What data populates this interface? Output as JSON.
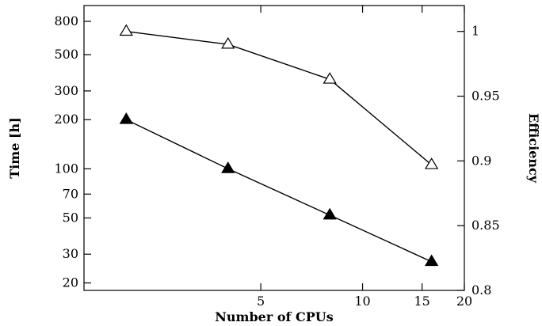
{
  "chart_data": {
    "type": "line",
    "xlabel": "Number of CPUs",
    "ylabel": "Time [h]",
    "y2label": "Efficiency",
    "xscale": "log",
    "yscale": "log",
    "xlim": [
      1.5,
      20
    ],
    "ylim": [
      18,
      1000
    ],
    "y2lim": [
      0.8,
      1.02
    ],
    "xticks": [
      5,
      10,
      15,
      20
    ],
    "xtick_labels": [
      "5",
      "10",
      "15",
      "20"
    ],
    "yticks": [
      20,
      30,
      50,
      70,
      100,
      200,
      300,
      500,
      800
    ],
    "ytick_labels": [
      "20",
      "30",
      "50",
      "70",
      "100",
      "200",
      "300",
      "500",
      "800"
    ],
    "y2ticks": [
      0.8,
      0.85,
      0.9,
      0.95,
      1
    ],
    "y2tick_labels": [
      "0.8",
      "0.85",
      "0.9",
      "0.95",
      "1"
    ],
    "grid": false,
    "series": [
      {
        "axis": "left",
        "marker": "filled-triangle",
        "color": "#000000",
        "x": [
          2,
          4,
          8,
          16
        ],
        "values": [
          200,
          100,
          52,
          27
        ]
      },
      {
        "axis": "right",
        "marker": "open-triangle",
        "color": "#000000",
        "x": [
          2,
          4,
          8,
          16
        ],
        "values": [
          1.0,
          0.99,
          0.963,
          0.897
        ]
      }
    ]
  }
}
